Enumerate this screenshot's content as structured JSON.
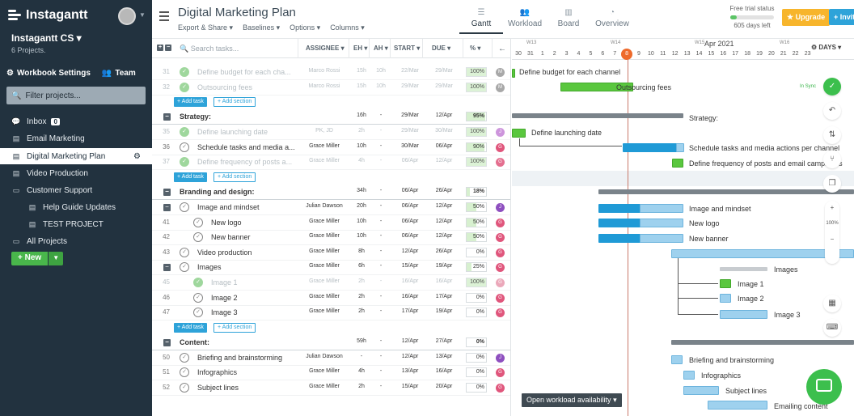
{
  "app": {
    "name": "Instagantt"
  },
  "sidebar": {
    "workspace": "Instagantt CS",
    "projects_count": "6 Projects.",
    "workbook_settings": "Workbook Settings",
    "team": "Team",
    "filter_placeholder": "Filter projects...",
    "items": [
      {
        "label": "Inbox",
        "badge": "0",
        "icon": "chat-icon"
      },
      {
        "label": "Email Marketing",
        "icon": "document-icon"
      },
      {
        "label": "Digital Marketing Plan",
        "icon": "document-icon",
        "active": true
      },
      {
        "label": "Video Production",
        "icon": "document-icon"
      },
      {
        "label": "Customer Support",
        "icon": "folder-icon"
      },
      {
        "label": "Help Guide Updates",
        "icon": "document-icon",
        "indent": true
      },
      {
        "label": "TEST PROJECT",
        "icon": "document-icon",
        "indent": true
      },
      {
        "label": "All Projects",
        "icon": "folder-icon"
      }
    ],
    "new_label": "+ New"
  },
  "header": {
    "title": "Digital Marketing Plan",
    "menus": [
      "Export & Share",
      "Baselines",
      "Options",
      "Columns"
    ],
    "views": [
      {
        "label": "Gantt",
        "active": true
      },
      {
        "label": "Workload"
      },
      {
        "label": "Board"
      },
      {
        "label": "Overview"
      }
    ],
    "trial_label": "Free trial status",
    "trial_days": "605 days left",
    "trial_progress": 0.15,
    "upgrade": "Upgrade",
    "invite": "Invite"
  },
  "grid": {
    "search_placeholder": "Search tasks...",
    "columns": {
      "assignee": "ASSIGNEE",
      "eh": "EH",
      "ah": "AH",
      "start": "START",
      "due": "DUE",
      "pct": "%"
    },
    "add_task": "Add task",
    "add_section": "Add section",
    "rows": [
      {
        "kind": "task",
        "num": "31",
        "name": "Define budget for each cha...",
        "assignee": "Marco Rossi",
        "eh": "15h",
        "ah": "10h",
        "start": "22/Mar",
        "due": "29/Mar",
        "pct": "100%",
        "pctv": 100,
        "av": "M",
        "avc": "#9a9a9a",
        "done": true
      },
      {
        "kind": "task",
        "num": "32",
        "name": "Outsourcing fees",
        "assignee": "Marco Rossi",
        "eh": "15h",
        "ah": "10h",
        "start": "29/Mar",
        "due": "29/Mar",
        "pct": "100%",
        "pctv": 100,
        "av": "M",
        "avc": "#9a9a9a",
        "done": true
      },
      {
        "kind": "add"
      },
      {
        "kind": "section",
        "name": "Strategy:",
        "eh": "16h",
        "ah": "-",
        "start": "29/Mar",
        "due": "12/Apr",
        "pct": "95%",
        "pctv": 95
      },
      {
        "kind": "task",
        "num": "35",
        "name": "Define launching date",
        "assignee": "PK, JD",
        "eh": "2h",
        "ah": "-",
        "start": "29/Mar",
        "due": "30/Mar",
        "pct": "100%",
        "pctv": 100,
        "av": "J",
        "avc": "#c583d6",
        "done": true
      },
      {
        "kind": "task",
        "num": "36",
        "name": "Schedule tasks and media a...",
        "assignee": "Grace Miller",
        "eh": "10h",
        "ah": "-",
        "start": "30/Mar",
        "due": "06/Apr",
        "pct": "90%",
        "pctv": 90,
        "av": "G",
        "avc": "#e0567c"
      },
      {
        "kind": "task",
        "num": "37",
        "name": "Define frequency of posts a...",
        "assignee": "Grace Miller",
        "eh": "4h",
        "ah": "-",
        "start": "06/Apr",
        "due": "12/Apr",
        "pct": "100%",
        "pctv": 100,
        "av": "G",
        "avc": "#e0567c",
        "done": true
      },
      {
        "kind": "add"
      },
      {
        "kind": "section",
        "name": "Branding and design:",
        "eh": "34h",
        "ah": "-",
        "start": "06/Apr",
        "due": "26/Apr",
        "pct": "18%",
        "pctv": 18
      },
      {
        "kind": "group",
        "num": "",
        "name": "Image and mindset",
        "assignee": "Julian Dawson",
        "eh": "20h",
        "ah": "-",
        "start": "06/Apr",
        "due": "12/Apr",
        "pct": "50%",
        "pctv": 50,
        "av": "J",
        "avc": "#8e4fbf"
      },
      {
        "kind": "sub",
        "num": "41",
        "name": "New logo",
        "assignee": "Grace Miller",
        "eh": "10h",
        "ah": "-",
        "start": "06/Apr",
        "due": "12/Apr",
        "pct": "50%",
        "pctv": 50,
        "av": "G",
        "avc": "#e0567c"
      },
      {
        "kind": "sub",
        "num": "42",
        "name": "New banner",
        "assignee": "Grace Miller",
        "eh": "10h",
        "ah": "-",
        "start": "06/Apr",
        "due": "12/Apr",
        "pct": "50%",
        "pctv": 50,
        "av": "G",
        "avc": "#e0567c"
      },
      {
        "kind": "task",
        "num": "43",
        "name": "Video production",
        "assignee": "Grace Miller",
        "eh": "8h",
        "ah": "-",
        "start": "12/Apr",
        "due": "26/Apr",
        "pct": "0%",
        "pctv": 0,
        "av": "G",
        "avc": "#e0567c"
      },
      {
        "kind": "group",
        "num": "",
        "name": "Images",
        "assignee": "Grace Miller",
        "eh": "6h",
        "ah": "-",
        "start": "15/Apr",
        "due": "19/Apr",
        "pct": "25%",
        "pctv": 25,
        "av": "G",
        "avc": "#e0567c"
      },
      {
        "kind": "sub",
        "num": "45",
        "name": "Image 1",
        "assignee": "Grace Miller",
        "eh": "2h",
        "ah": "-",
        "start": "16/Apr",
        "due": "16/Apr",
        "pct": "100%",
        "pctv": 100,
        "av": "G",
        "avc": "#e89aae",
        "done": true
      },
      {
        "kind": "sub",
        "num": "46",
        "name": "Image 2",
        "assignee": "Grace Miller",
        "eh": "2h",
        "ah": "-",
        "start": "16/Apr",
        "due": "17/Apr",
        "pct": "0%",
        "pctv": 0,
        "av": "G",
        "avc": "#e0567c"
      },
      {
        "kind": "sub",
        "num": "47",
        "name": "Image 3",
        "assignee": "Grace Miller",
        "eh": "2h",
        "ah": "-",
        "start": "17/Apr",
        "due": "19/Apr",
        "pct": "0%",
        "pctv": 0,
        "av": "G",
        "avc": "#e0567c"
      },
      {
        "kind": "add"
      },
      {
        "kind": "section",
        "name": "Content:",
        "eh": "59h",
        "ah": "-",
        "start": "12/Apr",
        "due": "27/Apr",
        "pct": "0%",
        "pctv": 0
      },
      {
        "kind": "task",
        "num": "50",
        "name": "Briefing and brainstorming",
        "assignee": "Julian Dawson",
        "eh": "-",
        "ah": "-",
        "start": "12/Apr",
        "due": "13/Apr",
        "pct": "0%",
        "pctv": 0,
        "av": "J",
        "avc": "#8e4fbf"
      },
      {
        "kind": "task",
        "num": "51",
        "name": "Infographics",
        "assignee": "Grace Miller",
        "eh": "4h",
        "ah": "-",
        "start": "13/Apr",
        "due": "16/Apr",
        "pct": "0%",
        "pctv": 0,
        "av": "G",
        "avc": "#e0567c"
      },
      {
        "kind": "task",
        "num": "52",
        "name": "Subject lines",
        "assignee": "Grace Miller",
        "eh": "2h",
        "ah": "-",
        "start": "15/Apr",
        "due": "20/Apr",
        "pct": "0%",
        "pctv": 0,
        "av": "G",
        "avc": "#e0567c"
      }
    ]
  },
  "gantt": {
    "weeks": [
      "W13",
      "W14",
      "W15",
      "W16"
    ],
    "month": "Apr 2021",
    "days": [
      "30",
      "31",
      "1",
      "2",
      "3",
      "4",
      "5",
      "6",
      "7",
      "8",
      "9",
      "10",
      "11",
      "12",
      "13",
      "14",
      "15",
      "16",
      "17",
      "18",
      "19",
      "20",
      "21",
      "22",
      "23"
    ],
    "today_day": "8",
    "zoom_button": "DAYS",
    "zoom_level": "100%",
    "sync": "In Sync",
    "section_strategy": "Strategy:",
    "workload_button": "Open workload availability",
    "labels": {
      "l31": "Define budget for each channel",
      "l32": "Outsourcing fees",
      "l35": "Define launching date",
      "l36": "Schedule tasks and media actions per channel",
      "l37": "Define frequency of posts and email campaigns",
      "lg1": "Image and mindset",
      "l41": "New logo",
      "l42": "New banner",
      "lg2": "Images",
      "l45": "Image 1",
      "l46": "Image 2",
      "l47": "Image 3",
      "l50": "Briefing and brainstorming",
      "l51": "Infographics",
      "l52": "Subject lines",
      "l53": "Emailing content"
    }
  }
}
